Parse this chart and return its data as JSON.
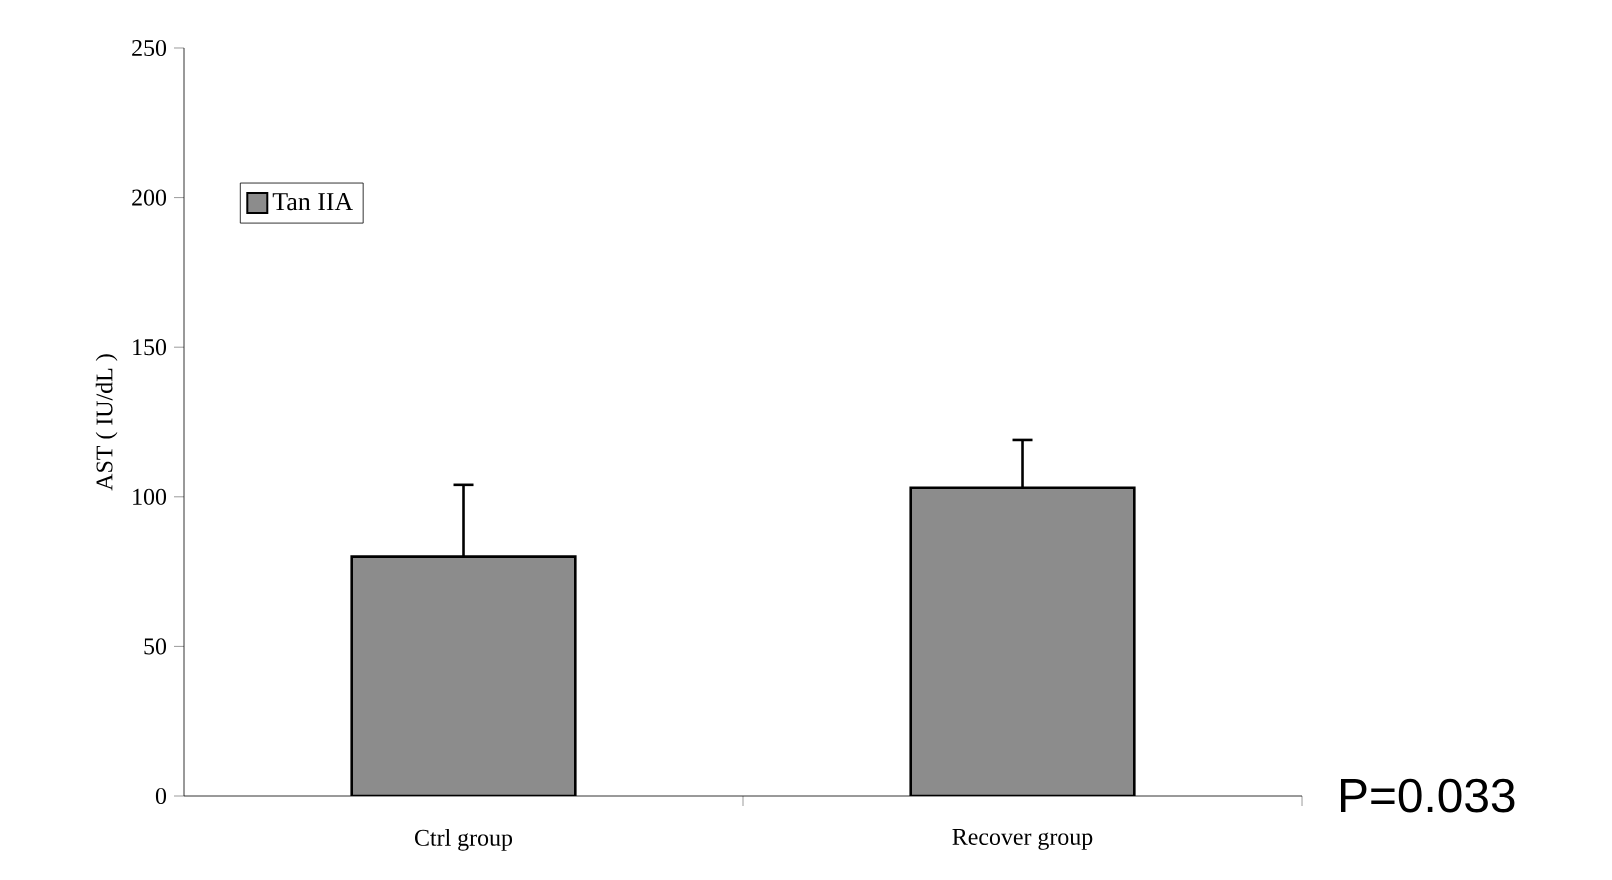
{
  "chart_data": {
    "type": "bar",
    "ylabel": "AST ( IU/dL )",
    "categories": [
      "Ctrl group",
      "Recover group"
    ],
    "series": [
      {
        "name": "Tan IIA",
        "color": "#8c8c8c",
        "values": [
          80,
          103
        ],
        "errors": [
          [
            80,
            104
          ],
          [
            103,
            119
          ]
        ]
      }
    ],
    "ylim": [
      0,
      250
    ],
    "yticks": [
      0,
      50,
      100,
      150,
      200,
      250
    ],
    "legend": "top left",
    "annotations": [
      "P=0.033"
    ]
  }
}
